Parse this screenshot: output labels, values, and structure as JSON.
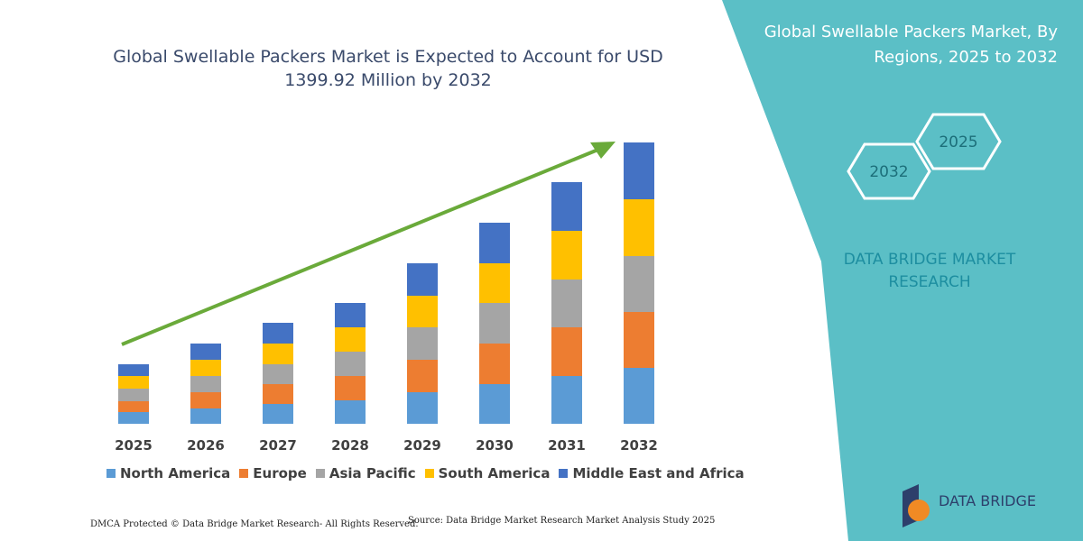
{
  "chart_data": {
    "type": "stacked-bar",
    "title": "Global Swellable Packers Market is Expected to Account for USD 1399.92 Million by 2032",
    "categories": [
      "2025",
      "2026",
      "2027",
      "2028",
      "2029",
      "2030",
      "2031",
      "2032"
    ],
    "series": [
      {
        "name": "North America",
        "color": "#5b9bd5",
        "values": [
          13,
          17,
          22,
          26,
          35,
          44,
          53,
          62
        ]
      },
      {
        "name": "Europe",
        "color": "#ed7d31",
        "values": [
          12,
          18,
          22,
          27,
          36,
          45,
          54,
          62
        ]
      },
      {
        "name": "Asia Pacific",
        "color": "#a5a5a5",
        "values": [
          14,
          18,
          22,
          27,
          36,
          45,
          53,
          62
        ]
      },
      {
        "name": "South America",
        "color": "#ffc000",
        "values": [
          14,
          18,
          23,
          27,
          35,
          44,
          54,
          63
        ]
      },
      {
        "name": "Middle East and Africa",
        "color": "#4472c4",
        "values": [
          13,
          18,
          23,
          27,
          36,
          45,
          54,
          63
        ]
      }
    ],
    "ylim": [
      0,
      320
    ]
  },
  "panel": {
    "title": "Global Swellable Packers Market, By Regions, 2025 to 2032",
    "hex_top": "2025",
    "hex_bottom": "2032",
    "brand": "DATA BRIDGE MARKET RESEARCH"
  },
  "footer": {
    "dmca": "DMCA Protected © Data Bridge Market Research- All Rights Reserved.",
    "source": "Source: Data Bridge Market Research Market Analysis Study 2025",
    "logo": "DATA BRIDGE"
  }
}
